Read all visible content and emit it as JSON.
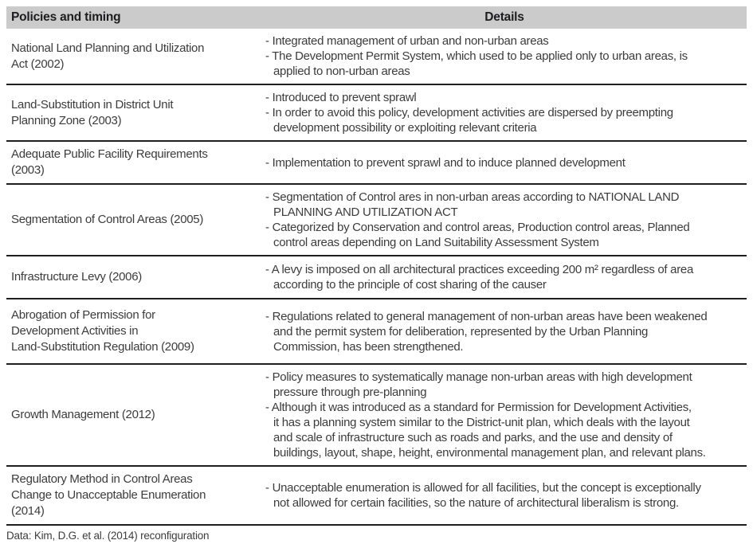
{
  "colors": {
    "header_background": "#cbcbcb",
    "row_divider": "#1f1f1f",
    "body_text": "#3c3c3c",
    "header_text": "#1d1d1f"
  },
  "table": {
    "headers": {
      "policy": "Policies and timing",
      "details": "Details"
    },
    "rows": [
      {
        "policy": "National Land Planning and Utilization\nAct (2002)",
        "details": [
          "Integrated management of urban and non-urban areas",
          "The Development Permit System, which used to be applied only to urban areas, is\napplied to non-urban areas"
        ]
      },
      {
        "policy": "Land-Substitution in District Unit\nPlanning Zone (2003)",
        "details": [
          "Introduced to prevent sprawl",
          "In order to avoid this policy, development activities are dispersed by preempting\ndevelopment possibility or exploiting relevant criteria"
        ]
      },
      {
        "policy": "Adequate Public Facility Requirements\n(2003)",
        "details": [
          "Implementation to prevent sprawl and to induce planned development"
        ]
      },
      {
        "policy": "Segmentation of Control Areas (2005)",
        "details": [
          "Segmentation of Control ares in non-urban areas according to NATIONAL LAND\nPLANNING AND UTILIZATION ACT",
          "Categorized by Conservation and control areas, Production control areas, Planned\ncontrol areas depending on Land Suitability Assessment System"
        ]
      },
      {
        "policy": "Infrastructure Levy (2006)",
        "details": [
          "A levy is imposed on all architectural practices exceeding 200 m² regardless of area\naccording to the principle of cost sharing of the causer"
        ]
      },
      {
        "policy": "Abrogation of Permission for\nDevelopment Activities in\nLand-Substitution Regulation (2009)",
        "details": [
          "Regulations related to general management of non-urban areas have been weakened\nand the permit system for deliberation, represented by the Urban Planning\nCommission, has been strengthened."
        ]
      },
      {
        "policy": "Growth Management (2012)",
        "details": [
          "Policy measures to systematically manage non-urban areas with high development\npressure through pre-planning",
          "Although it was introduced as a standard for Permission for Development Activities,\nit has a planning system similar to the District-unit plan, which deals with the layout\nand scale of infrastructure such as roads and parks, and the use and density of\nbuildings, layout, shape, height, environmental management plan, and relevant plans."
        ]
      },
      {
        "policy": "Regulatory Method in Control Areas\nChange to Unacceptable Enumeration\n(2014)",
        "details": [
          "Unacceptable enumeration is allowed for all facilities, but the concept is exceptionally\nnot allowed for certain facilities, so the nature of architectural liberalism is strong."
        ]
      }
    ]
  },
  "footer": {
    "source_note": "Data: Kim, D.G. et al. (2014) reconfiguration"
  }
}
